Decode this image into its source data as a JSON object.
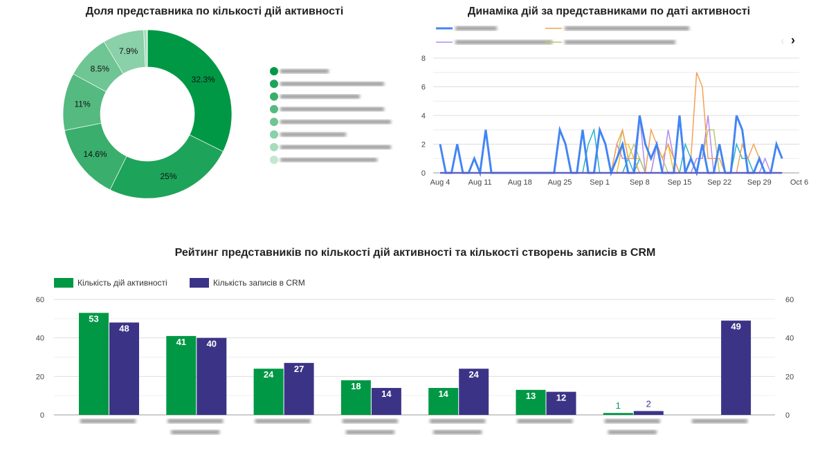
{
  "chart_data": [
    {
      "type": "pie",
      "title": "Доля представника по кількості дій активності",
      "donut": true,
      "values": [
        32.3,
        25,
        14.6,
        11,
        8.5,
        7.9,
        0.6,
        0.1
      ],
      "labels": [
        "32.3%",
        "25%",
        "14.6%",
        "11%",
        "8.5%",
        "7.9%",
        "",
        ""
      ],
      "colors": [
        "#009845",
        "#1ea35a",
        "#3aae6c",
        "#54ba80",
        "#6fc594",
        "#8ad0a8",
        "#a6dcbc",
        "#c2e7d0"
      ],
      "legend": "right"
    },
    {
      "type": "line",
      "title": "Динаміка дій за представниками по даті активності",
      "x_start": "Aug 4",
      "x_ticks": [
        "Aug 4",
        "Aug 11",
        "Aug 18",
        "Aug 25",
        "Sep 1",
        "Sep 8",
        "Sep 15",
        "Sep 22",
        "Sep 29",
        "Oct 6"
      ],
      "y_ticks": [
        "0",
        "2",
        "4",
        "6",
        "8"
      ],
      "ylim": [
        0,
        8
      ],
      "legend": "top",
      "series": [
        {
          "color": "#4285f4",
          "width": 3,
          "values": [
            2,
            0,
            0,
            2,
            0,
            0,
            1,
            0,
            3,
            0,
            0,
            0,
            0,
            0,
            0,
            0,
            0,
            0,
            0,
            0,
            0,
            3,
            2,
            0,
            0,
            3,
            0,
            0,
            3,
            2,
            0,
            1,
            2,
            0,
            0,
            4,
            2,
            1,
            2,
            0,
            0,
            0,
            4,
            0,
            1,
            0,
            2,
            0,
            0,
            2,
            0,
            0,
            4,
            3,
            0,
            0,
            1,
            0,
            0,
            2,
            1
          ]
        },
        {
          "color": "#f4a052",
          "width": 1.5,
          "values": [
            0,
            0,
            0,
            0,
            0,
            0,
            0,
            0,
            0,
            0,
            0,
            0,
            0,
            0,
            0,
            0,
            0,
            0,
            0,
            0,
            0,
            0,
            0,
            0,
            0,
            0,
            0,
            0,
            0,
            0,
            0,
            2,
            3,
            1,
            1,
            0,
            0,
            3,
            2,
            1,
            2,
            1,
            0,
            0,
            1,
            7,
            6,
            1,
            1,
            1,
            0,
            0,
            0,
            2,
            1,
            2,
            1,
            0,
            0,
            0,
            0
          ]
        },
        {
          "color": "#b38af0",
          "width": 1.5,
          "values": [
            0,
            0,
            0,
            0,
            0,
            0,
            0,
            0,
            0,
            0,
            0,
            0,
            0,
            0,
            0,
            0,
            0,
            0,
            0,
            0,
            0,
            0,
            0,
            0,
            0,
            0,
            0,
            0,
            0,
            0,
            0,
            2,
            1,
            1,
            1,
            4,
            0,
            0,
            2,
            0,
            3,
            1,
            0,
            0,
            0,
            1,
            1,
            4,
            0,
            0,
            0,
            0,
            0,
            0,
            0,
            0,
            0,
            1,
            0,
            0,
            0
          ]
        },
        {
          "color": "#b9c96a",
          "width": 1.5,
          "values": [
            0,
            0,
            0,
            0,
            0,
            0,
            0,
            0,
            0,
            0,
            0,
            0,
            0,
            0,
            0,
            0,
            0,
            0,
            0,
            0,
            0,
            0,
            0,
            0,
            0,
            0,
            0,
            0,
            0,
            0,
            0,
            1,
            3,
            1,
            2,
            1,
            0,
            0,
            2,
            1,
            0,
            0,
            0,
            0,
            0,
            1,
            1,
            3,
            3,
            0,
            0,
            0,
            0,
            0,
            0,
            0,
            0,
            0,
            0,
            0,
            0
          ]
        },
        {
          "color": "#26b5c4",
          "width": 1.5,
          "values": [
            0,
            0,
            0,
            0,
            0,
            0,
            0,
            0,
            0,
            0,
            0,
            0,
            0,
            0,
            0,
            0,
            0,
            0,
            0,
            0,
            0,
            0,
            0,
            0,
            0,
            0,
            2,
            3,
            0,
            0,
            0,
            0,
            0,
            1,
            0,
            1,
            0,
            0,
            0,
            0,
            0,
            0,
            0,
            2,
            1,
            0,
            0,
            0,
            0,
            0,
            0,
            0,
            2,
            1,
            1,
            0,
            0,
            0,
            0,
            0,
            0
          ]
        },
        {
          "color": "#f2c12e",
          "width": 1.5,
          "values": [
            0,
            0,
            0,
            0,
            0,
            0,
            0,
            0,
            0,
            0,
            0,
            0,
            0,
            0,
            0,
            0,
            0,
            0,
            0,
            0,
            0,
            0,
            0,
            0,
            0,
            0,
            0,
            0,
            0,
            0,
            0,
            0,
            2,
            2,
            1,
            1,
            0,
            0,
            2,
            1,
            2,
            0,
            0,
            0,
            1,
            0,
            0,
            0,
            0,
            0,
            0,
            0,
            0,
            0,
            0,
            0,
            0,
            0,
            0,
            0,
            0
          ]
        }
      ]
    },
    {
      "type": "bar",
      "title": "Рейтинг представників по кількості дій активності та кількості створень записів в CRM",
      "legend": "top-left",
      "ylim": [
        0,
        60
      ],
      "y_ticks": [
        "0",
        "20",
        "40",
        "60"
      ],
      "series": [
        {
          "name": "Кількість дій активності",
          "color": "#009845",
          "values": [
            53,
            41,
            24,
            18,
            14,
            13,
            1,
            0
          ],
          "labels": [
            "53",
            "41",
            "24",
            "18",
            "14",
            "13",
            "1",
            ""
          ]
        },
        {
          "name": "Кількість записів в CRM",
          "color": "#3b3486",
          "values": [
            48,
            40,
            27,
            14,
            24,
            12,
            2,
            49
          ],
          "labels": [
            "48",
            "40",
            "27",
            "14",
            "24",
            "12",
            "2",
            "49"
          ]
        }
      ]
    }
  ]
}
